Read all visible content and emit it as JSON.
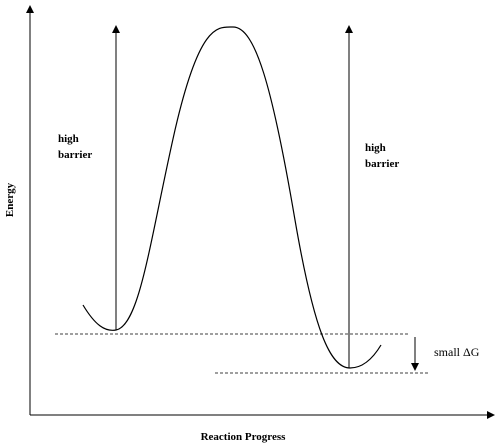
{
  "axes": {
    "y_label": "Energy",
    "x_label": "Reaction Progress"
  },
  "annotations": [
    {
      "lines": [
        "high",
        "barrier"
      ]
    },
    {
      "lines": [
        "high",
        "barrier"
      ]
    },
    {
      "text": "small ΔG"
    }
  ]
}
